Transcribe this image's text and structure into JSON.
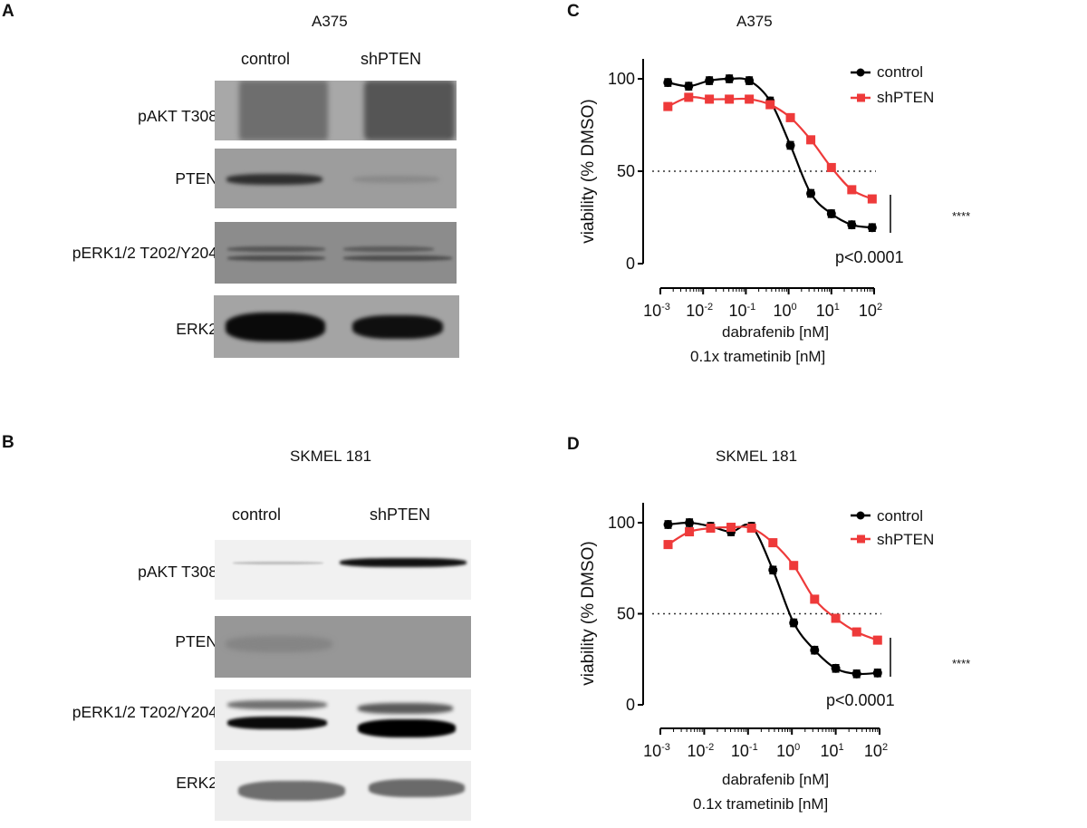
{
  "panels": {
    "A": {
      "letter": "A",
      "title": "A375",
      "lanes": [
        "control",
        "shPTEN"
      ],
      "rows": [
        "pAKT T308",
        "PTEN",
        "pERK1/2 T202/Y204",
        "ERK2"
      ]
    },
    "B": {
      "letter": "B",
      "title": "SKMEL 181",
      "lanes": [
        "control",
        "shPTEN"
      ],
      "rows": [
        "pAKT T308",
        "PTEN",
        "pERK1/2 T202/Y204",
        "ERK2"
      ]
    },
    "C": {
      "letter": "C",
      "title": "A375",
      "ylabel": "viability (% DMSO)",
      "xlabel_1": "dabrafenib [nM]",
      "xlabel_2": "0.1x trametinib [nM]",
      "legend": [
        "control",
        "shPTEN"
      ],
      "sig": "****",
      "pvalue": "p<0.0001"
    },
    "D": {
      "letter": "D",
      "title": "SKMEL 181",
      "ylabel": "viability (% DMSO)",
      "xlabel_1": "dabrafenib [nM]",
      "xlabel_2": "0.1x trametinib [nM]",
      "legend": [
        "control",
        "shPTEN"
      ],
      "sig": "****",
      "pvalue": "p<0.0001"
    }
  },
  "colors": {
    "control": "#000000",
    "shPTEN": "#ee3a3a"
  },
  "chart_data": [
    {
      "type": "line",
      "panel": "C",
      "title": "A375",
      "xlabel": "dabrafenib [nM] / 0.1x trametinib [nM]",
      "ylabel": "viability (% DMSO)",
      "xscale": "log",
      "xlim": [
        0.001,
        100
      ],
      "ylim": [
        0,
        100
      ],
      "x_tick_labels": [
        "10^-3",
        "10^-2",
        "10^-1",
        "10^0",
        "10^1",
        "10^2"
      ],
      "y_ticks": [
        0,
        50,
        100
      ],
      "reference_line": 50,
      "legend_position": "top-right",
      "x": [
        0.0015,
        0.0046,
        0.014,
        0.041,
        0.12,
        0.37,
        1.1,
        3.3,
        10,
        30,
        90
      ],
      "series": [
        {
          "name": "control",
          "values": [
            98,
            96,
            99,
            100,
            99,
            88,
            64,
            38,
            27,
            21,
            19.5
          ]
        },
        {
          "name": "shPTEN",
          "values": [
            85,
            90,
            89,
            89,
            89,
            86,
            79,
            67,
            52,
            40,
            35
          ]
        }
      ],
      "annotations": [
        "****",
        "p<0.0001"
      ]
    },
    {
      "type": "line",
      "panel": "D",
      "title": "SKMEL 181",
      "xlabel": "dabrafenib [nM] / 0.1x trametinib [nM]",
      "ylabel": "viability (% DMSO)",
      "xscale": "log",
      "xlim": [
        0.001,
        100
      ],
      "ylim": [
        0,
        100
      ],
      "x_tick_labels": [
        "10^-3",
        "10^-2",
        "10^-1",
        "10^0",
        "10^1",
        "10^2"
      ],
      "y_ticks": [
        0,
        50,
        100
      ],
      "reference_line": 50,
      "legend_position": "top-right",
      "x": [
        0.0015,
        0.0046,
        0.014,
        0.041,
        0.12,
        0.37,
        1.1,
        3.3,
        10,
        30,
        90
      ],
      "series": [
        {
          "name": "control",
          "values": [
            99,
            100,
            98,
            95,
            98,
            74,
            45,
            30,
            20,
            17,
            17.5
          ]
        },
        {
          "name": "shPTEN",
          "values": [
            88,
            95,
            97,
            97.5,
            97,
            89,
            76.5,
            58,
            47.5,
            40,
            35.5
          ]
        }
      ],
      "annotations": [
        "****",
        "p<0.0001"
      ]
    }
  ]
}
